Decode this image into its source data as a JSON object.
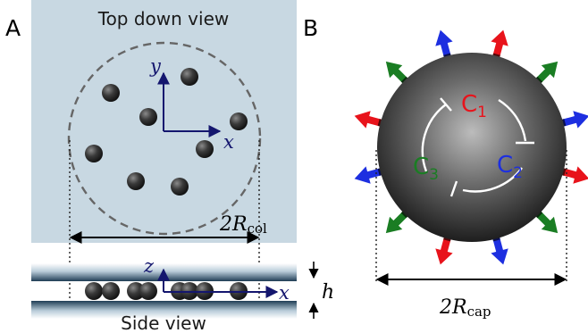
{
  "panel_a": {
    "letter": "A",
    "top_caption": "Top down view",
    "bottom_caption": "Side view",
    "axis_y": "y",
    "axis_x_top": "x",
    "axis_z": "z",
    "axis_x_side": "x",
    "dim_col_main": "2R",
    "dim_col_sub": "col",
    "dim_h": "h"
  },
  "panel_b": {
    "letter": "B",
    "c1_main": "C",
    "c1_sub": "1",
    "c2_main": "C",
    "c2_sub": "2",
    "c3_main": "C",
    "c3_sub": "3",
    "dim_cap_main": "2R",
    "dim_cap_sub": "cap"
  },
  "colors": {
    "top_bg": "#c8d8e2",
    "c1": "#e8131b",
    "c2": "#1d2fe0",
    "c3": "#1a7d23",
    "axis": "#14166e"
  }
}
